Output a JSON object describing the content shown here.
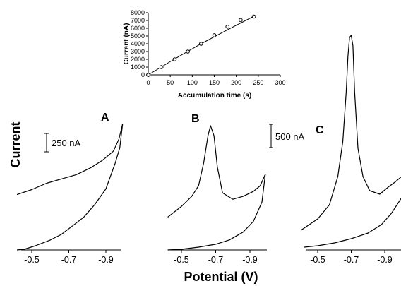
{
  "figure": {
    "ylabel": "Current",
    "xlabel": "Potential (V)"
  },
  "chart_data": [
    {
      "type": "scatter",
      "role": "inset",
      "xlabel": "Accumulation time (s)",
      "ylabel": "Current (nA)",
      "xlim": [
        0,
        300
      ],
      "ylim": [
        0,
        8000
      ],
      "xticks": [
        0,
        50,
        100,
        150,
        200,
        250,
        300
      ],
      "yticks": [
        0,
        1000,
        2000,
        3000,
        4000,
        5000,
        6000,
        7000,
        8000
      ],
      "points": [
        {
          "x": 0,
          "y": 0
        },
        {
          "x": 30,
          "y": 1000
        },
        {
          "x": 60,
          "y": 2000
        },
        {
          "x": 90,
          "y": 3000
        },
        {
          "x": 120,
          "y": 4000
        },
        {
          "x": 150,
          "y": 5100
        },
        {
          "x": 180,
          "y": 6200
        },
        {
          "x": 210,
          "y": 7050
        },
        {
          "x": 240,
          "y": 7500
        }
      ],
      "fit": [
        {
          "x": 0,
          "y": 0
        },
        {
          "x": 60,
          "y": 2050
        },
        {
          "x": 120,
          "y": 4000
        },
        {
          "x": 180,
          "y": 5800
        },
        {
          "x": 240,
          "y": 7550
        }
      ]
    },
    {
      "type": "line",
      "panel": "A",
      "scale_bar": "250 nA",
      "scale_bar_value_nA": 250,
      "xticks": [
        "-0.5",
        "-0.7",
        "-0.9"
      ],
      "xlim": [
        -0.4,
        -1.0
      ],
      "series": [
        {
          "points": [
            [
              -0.42,
              99
            ],
            [
              -0.5,
              92
            ],
            [
              -0.58,
              83
            ],
            [
              -0.66,
              77
            ],
            [
              -0.74,
              71
            ],
            [
              -0.82,
              61
            ],
            [
              -0.88,
              51
            ],
            [
              -0.94,
              38
            ],
            [
              -0.97,
              21
            ],
            [
              -0.99,
              0
            ]
          ]
        },
        {
          "points": [
            [
              -0.99,
              0
            ],
            [
              -0.975,
              33
            ],
            [
              -0.95,
              55
            ],
            [
              -0.9,
              91
            ],
            [
              -0.84,
              113
            ],
            [
              -0.78,
              131
            ],
            [
              -0.72,
              143
            ],
            [
              -0.66,
              155
            ],
            [
              -0.6,
              163
            ],
            [
              -0.52,
              171
            ],
            [
              -0.46,
              176
            ],
            [
              -0.42,
              177
            ]
          ]
        }
      ]
    },
    {
      "type": "line",
      "panel": "B",
      "scale_bar": "500 nA",
      "scale_bar_value_nA": 500,
      "xticks": [
        "-0.5",
        "-0.7",
        "-0.9"
      ],
      "xlim": [
        -0.4,
        -1.0
      ],
      "series": [
        {
          "points": [
            [
              -0.42,
              128
            ],
            [
              -0.5,
              113
            ],
            [
              -0.56,
              99
            ],
            [
              -0.6,
              84
            ],
            [
              -0.63,
              52
            ],
            [
              -0.655,
              14
            ],
            [
              -0.67,
              0
            ],
            [
              -0.69,
              14
            ],
            [
              -0.71,
              58
            ],
            [
              -0.74,
              94
            ],
            [
              -0.8,
              103
            ],
            [
              -0.86,
              99
            ],
            [
              -0.92,
              92
            ],
            [
              -0.96,
              84
            ],
            [
              -0.99,
              68
            ]
          ]
        },
        {
          "points": [
            [
              -0.99,
              68
            ],
            [
              -0.97,
              107
            ],
            [
              -0.92,
              134
            ],
            [
              -0.86,
              149
            ],
            [
              -0.78,
              160
            ],
            [
              -0.7,
              166
            ],
            [
              -0.6,
              170
            ],
            [
              -0.5,
              173
            ],
            [
              -0.42,
              174
            ]
          ]
        }
      ]
    },
    {
      "type": "line",
      "panel": "C",
      "xticks": [
        "-0.5",
        "-0.7",
        "-0.9"
      ],
      "xlim": [
        -0.4,
        -1.0
      ],
      "series": [
        {
          "points": [
            [
              -0.4,
              276
            ],
            [
              -0.5,
              260
            ],
            [
              -0.57,
              240
            ],
            [
              -0.62,
              200
            ],
            [
              -0.65,
              150
            ],
            [
              -0.67,
              80
            ],
            [
              -0.68,
              30
            ],
            [
              -0.69,
              3
            ],
            [
              -0.7,
              0
            ],
            [
              -0.71,
              15
            ],
            [
              -0.72,
              80
            ],
            [
              -0.74,
              160
            ],
            [
              -0.77,
              200
            ],
            [
              -0.81,
              220
            ],
            [
              -0.87,
              225
            ],
            [
              -0.92,
              215
            ],
            [
              -0.96,
              208
            ],
            [
              -1.0,
              200
            ]
          ]
        },
        {
          "points": [
            [
              -1.0,
              230
            ],
            [
              -0.94,
              252
            ],
            [
              -0.88,
              268
            ],
            [
              -0.8,
              280
            ],
            [
              -0.7,
              288
            ],
            [
              -0.6,
              294
            ],
            [
              -0.5,
              298
            ],
            [
              -0.42,
              300
            ]
          ]
        }
      ]
    }
  ]
}
